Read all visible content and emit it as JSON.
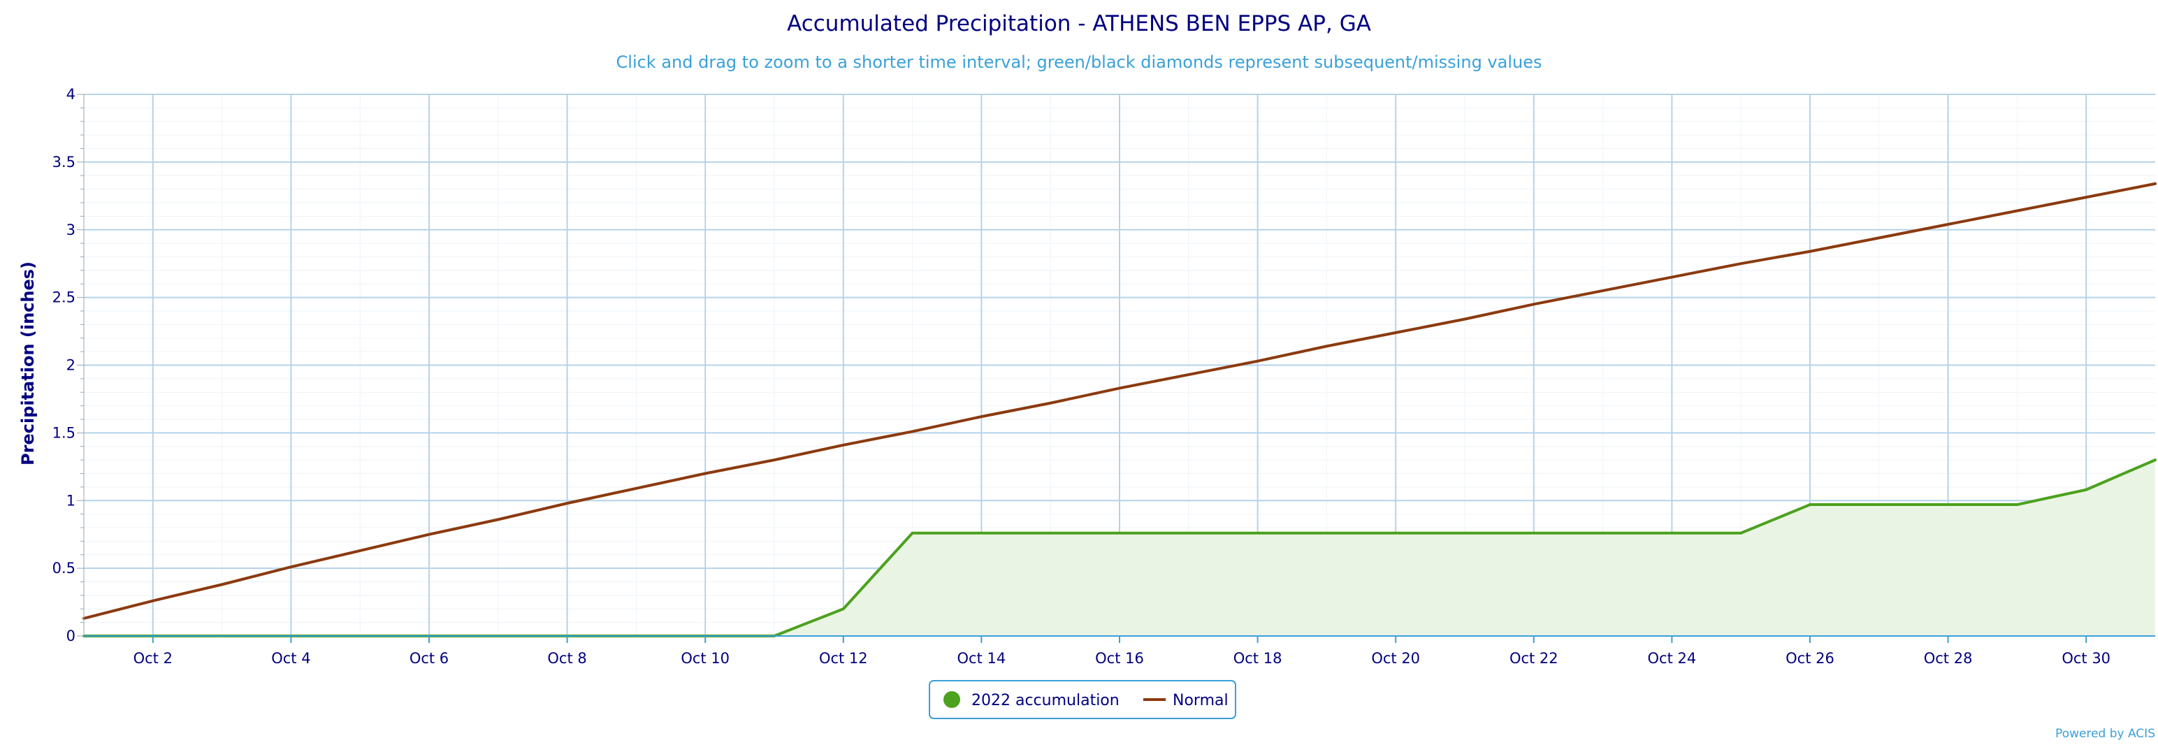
{
  "chart_data": {
    "type": "line",
    "title": "Accumulated Precipitation - ATHENS BEN EPPS AP, GA",
    "subtitle": "Click and drag to zoom to a shorter time interval; green/black diamonds represent subsequent/missing values",
    "xlabel": "",
    "ylabel": "Precipitation (inches)",
    "ylim": [
      0,
      4
    ],
    "xlim": [
      "Oct 1",
      "Oct 31"
    ],
    "yticks": [
      "0",
      "0.5",
      "1",
      "1.5",
      "2",
      "2.5",
      "3",
      "3.5",
      "4"
    ],
    "xticks": [
      "Oct 2",
      "Oct 4",
      "Oct 6",
      "Oct 8",
      "Oct 10",
      "Oct 12",
      "Oct 14",
      "Oct 16",
      "Oct 18",
      "Oct 20",
      "Oct 22",
      "Oct 24",
      "Oct 26",
      "Oct 28",
      "Oct 30"
    ],
    "x": [
      "Oct 1",
      "Oct 2",
      "Oct 3",
      "Oct 4",
      "Oct 5",
      "Oct 6",
      "Oct 7",
      "Oct 8",
      "Oct 9",
      "Oct 10",
      "Oct 11",
      "Oct 12",
      "Oct 13",
      "Oct 14",
      "Oct 15",
      "Oct 16",
      "Oct 17",
      "Oct 18",
      "Oct 19",
      "Oct 20",
      "Oct 21",
      "Oct 22",
      "Oct 23",
      "Oct 24",
      "Oct 25",
      "Oct 26",
      "Oct 27",
      "Oct 28",
      "Oct 29",
      "Oct 30",
      "Oct 31"
    ],
    "grid": true,
    "legend_position": "bottom-center",
    "series": [
      {
        "name": "2022 accumulation",
        "color": "#4ca11e",
        "fill": "#eaf4e4",
        "area": true,
        "values": [
          0,
          0,
          0,
          0,
          0,
          0,
          0,
          0,
          0,
          0,
          0,
          0.2,
          0.76,
          0.76,
          0.76,
          0.76,
          0.76,
          0.76,
          0.76,
          0.76,
          0.76,
          0.76,
          0.76,
          0.76,
          0.76,
          0.97,
          0.97,
          0.97,
          0.97,
          1.08,
          1.3
        ]
      },
      {
        "name": "Normal",
        "color": "#8b3a0f",
        "area": false,
        "values": [
          0.13,
          0.26,
          0.38,
          0.51,
          0.63,
          0.75,
          0.86,
          0.98,
          1.09,
          1.2,
          1.3,
          1.41,
          1.51,
          1.62,
          1.72,
          1.83,
          1.93,
          2.03,
          2.14,
          2.24,
          2.34,
          2.45,
          2.55,
          2.65,
          2.75,
          2.84,
          2.94,
          3.04,
          3.14,
          3.24,
          3.34
        ]
      }
    ],
    "credit": "Powered by ACIS"
  }
}
